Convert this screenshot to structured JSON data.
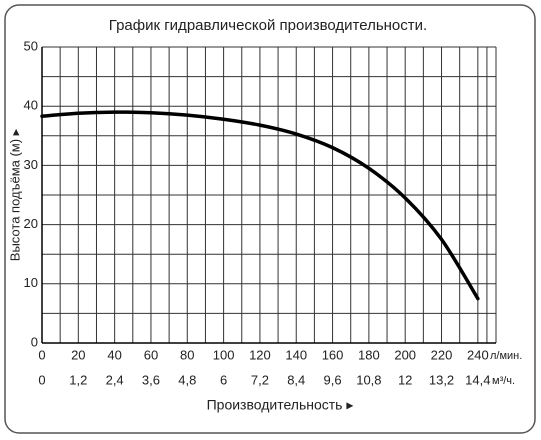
{
  "chart_data": {
    "type": "line",
    "title": "График гидравлической производительности.",
    "y_label": "Высота подъёма (м) ▸",
    "x_label": "Производительность ▸",
    "x_unit": "л/мин.",
    "x2_unit": "м³/ч.",
    "x": [
      0,
      20,
      40,
      60,
      80,
      100,
      120,
      140,
      160,
      180,
      200,
      220,
      240
    ],
    "series": [
      {
        "color": "#000000",
        "values": [
          38.3,
          38.8,
          39,
          38.9,
          38.5,
          37.8,
          36.8,
          35.3,
          33,
          29.5,
          24.5,
          17.5,
          7.5
        ]
      }
    ],
    "xlim": [
      0,
      250
    ],
    "xticks": [
      0,
      20,
      40,
      60,
      80,
      100,
      120,
      140,
      160,
      180,
      200,
      220,
      240
    ],
    "x2lim": [
      0,
      15
    ],
    "x2ticks": [
      0,
      {
        "value": 1.2,
        "label": "1,2"
      },
      {
        "value": 2.4,
        "label": "2,4"
      },
      {
        "value": 3.6,
        "label": "3,6"
      },
      {
        "value": 4.8,
        "label": "4,8"
      },
      6,
      {
        "value": 7.2,
        "label": "7,2"
      },
      {
        "value": 8.4,
        "label": "8,4"
      },
      {
        "value": 9.6,
        "label": "9,6"
      },
      {
        "value": 10.8,
        "label": "10,8"
      },
      12,
      {
        "value": 13.2,
        "label": "13,2"
      },
      {
        "value": 14.4,
        "label": "14,4"
      }
    ],
    "ylim": [
      0,
      50
    ],
    "yticks": [
      0,
      10,
      20,
      30,
      40,
      50
    ],
    "grid": true
  }
}
